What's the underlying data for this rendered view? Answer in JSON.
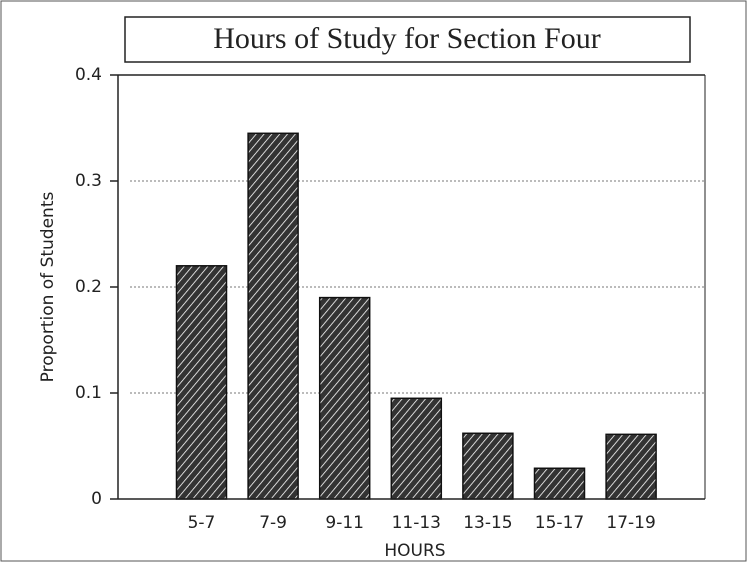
{
  "chart_data": {
    "type": "bar",
    "title": "Hours of Study for Section Four",
    "x_label": "HOURS",
    "y_label": "Proportion of Students",
    "categories": [
      "5-7",
      "7-9",
      "9-11",
      "11-13",
      "13-15",
      "15-17",
      "17-19"
    ],
    "values": [
      0.22,
      0.345,
      0.19,
      0.095,
      0.062,
      0.029,
      0.061
    ],
    "color": "#333333",
    "ylim": [
      0,
      0.4
    ],
    "yticks": [
      0,
      0.1,
      0.2,
      0.3,
      0.4
    ],
    "grid": true
  }
}
